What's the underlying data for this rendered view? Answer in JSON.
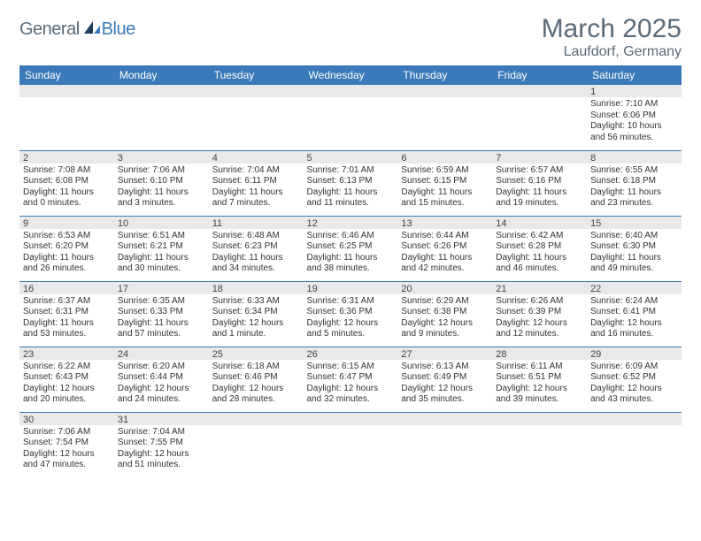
{
  "logo": {
    "part1": "General",
    "part2": "Blue"
  },
  "title": "March 2025",
  "location": "Laufdorf, Germany",
  "weekdays": [
    "Sunday",
    "Monday",
    "Tuesday",
    "Wednesday",
    "Thursday",
    "Friday",
    "Saturday"
  ],
  "colors": {
    "header_bg": "#3a7ab8",
    "header_text": "#ffffff",
    "day_head_bg": "#e9e9e9",
    "border": "#3a7ab8",
    "logo_gray": "#5a6a78",
    "logo_blue": "#3a7ab8"
  },
  "weeks": [
    [
      {
        "n": "",
        "sunrise": "",
        "sunset": "",
        "daylight": ""
      },
      {
        "n": "",
        "sunrise": "",
        "sunset": "",
        "daylight": ""
      },
      {
        "n": "",
        "sunrise": "",
        "sunset": "",
        "daylight": ""
      },
      {
        "n": "",
        "sunrise": "",
        "sunset": "",
        "daylight": ""
      },
      {
        "n": "",
        "sunrise": "",
        "sunset": "",
        "daylight": ""
      },
      {
        "n": "",
        "sunrise": "",
        "sunset": "",
        "daylight": ""
      },
      {
        "n": "1",
        "sunrise": "Sunrise: 7:10 AM",
        "sunset": "Sunset: 6:06 PM",
        "daylight": "Daylight: 10 hours and 56 minutes."
      }
    ],
    [
      {
        "n": "2",
        "sunrise": "Sunrise: 7:08 AM",
        "sunset": "Sunset: 6:08 PM",
        "daylight": "Daylight: 11 hours and 0 minutes."
      },
      {
        "n": "3",
        "sunrise": "Sunrise: 7:06 AM",
        "sunset": "Sunset: 6:10 PM",
        "daylight": "Daylight: 11 hours and 3 minutes."
      },
      {
        "n": "4",
        "sunrise": "Sunrise: 7:04 AM",
        "sunset": "Sunset: 6:11 PM",
        "daylight": "Daylight: 11 hours and 7 minutes."
      },
      {
        "n": "5",
        "sunrise": "Sunrise: 7:01 AM",
        "sunset": "Sunset: 6:13 PM",
        "daylight": "Daylight: 11 hours and 11 minutes."
      },
      {
        "n": "6",
        "sunrise": "Sunrise: 6:59 AM",
        "sunset": "Sunset: 6:15 PM",
        "daylight": "Daylight: 11 hours and 15 minutes."
      },
      {
        "n": "7",
        "sunrise": "Sunrise: 6:57 AM",
        "sunset": "Sunset: 6:16 PM",
        "daylight": "Daylight: 11 hours and 19 minutes."
      },
      {
        "n": "8",
        "sunrise": "Sunrise: 6:55 AM",
        "sunset": "Sunset: 6:18 PM",
        "daylight": "Daylight: 11 hours and 23 minutes."
      }
    ],
    [
      {
        "n": "9",
        "sunrise": "Sunrise: 6:53 AM",
        "sunset": "Sunset: 6:20 PM",
        "daylight": "Daylight: 11 hours and 26 minutes."
      },
      {
        "n": "10",
        "sunrise": "Sunrise: 6:51 AM",
        "sunset": "Sunset: 6:21 PM",
        "daylight": "Daylight: 11 hours and 30 minutes."
      },
      {
        "n": "11",
        "sunrise": "Sunrise: 6:48 AM",
        "sunset": "Sunset: 6:23 PM",
        "daylight": "Daylight: 11 hours and 34 minutes."
      },
      {
        "n": "12",
        "sunrise": "Sunrise: 6:46 AM",
        "sunset": "Sunset: 6:25 PM",
        "daylight": "Daylight: 11 hours and 38 minutes."
      },
      {
        "n": "13",
        "sunrise": "Sunrise: 6:44 AM",
        "sunset": "Sunset: 6:26 PM",
        "daylight": "Daylight: 11 hours and 42 minutes."
      },
      {
        "n": "14",
        "sunrise": "Sunrise: 6:42 AM",
        "sunset": "Sunset: 6:28 PM",
        "daylight": "Daylight: 11 hours and 46 minutes."
      },
      {
        "n": "15",
        "sunrise": "Sunrise: 6:40 AM",
        "sunset": "Sunset: 6:30 PM",
        "daylight": "Daylight: 11 hours and 49 minutes."
      }
    ],
    [
      {
        "n": "16",
        "sunrise": "Sunrise: 6:37 AM",
        "sunset": "Sunset: 6:31 PM",
        "daylight": "Daylight: 11 hours and 53 minutes."
      },
      {
        "n": "17",
        "sunrise": "Sunrise: 6:35 AM",
        "sunset": "Sunset: 6:33 PM",
        "daylight": "Daylight: 11 hours and 57 minutes."
      },
      {
        "n": "18",
        "sunrise": "Sunrise: 6:33 AM",
        "sunset": "Sunset: 6:34 PM",
        "daylight": "Daylight: 12 hours and 1 minute."
      },
      {
        "n": "19",
        "sunrise": "Sunrise: 6:31 AM",
        "sunset": "Sunset: 6:36 PM",
        "daylight": "Daylight: 12 hours and 5 minutes."
      },
      {
        "n": "20",
        "sunrise": "Sunrise: 6:29 AM",
        "sunset": "Sunset: 6:38 PM",
        "daylight": "Daylight: 12 hours and 9 minutes."
      },
      {
        "n": "21",
        "sunrise": "Sunrise: 6:26 AM",
        "sunset": "Sunset: 6:39 PM",
        "daylight": "Daylight: 12 hours and 12 minutes."
      },
      {
        "n": "22",
        "sunrise": "Sunrise: 6:24 AM",
        "sunset": "Sunset: 6:41 PM",
        "daylight": "Daylight: 12 hours and 16 minutes."
      }
    ],
    [
      {
        "n": "23",
        "sunrise": "Sunrise: 6:22 AM",
        "sunset": "Sunset: 6:43 PM",
        "daylight": "Daylight: 12 hours and 20 minutes."
      },
      {
        "n": "24",
        "sunrise": "Sunrise: 6:20 AM",
        "sunset": "Sunset: 6:44 PM",
        "daylight": "Daylight: 12 hours and 24 minutes."
      },
      {
        "n": "25",
        "sunrise": "Sunrise: 6:18 AM",
        "sunset": "Sunset: 6:46 PM",
        "daylight": "Daylight: 12 hours and 28 minutes."
      },
      {
        "n": "26",
        "sunrise": "Sunrise: 6:15 AM",
        "sunset": "Sunset: 6:47 PM",
        "daylight": "Daylight: 12 hours and 32 minutes."
      },
      {
        "n": "27",
        "sunrise": "Sunrise: 6:13 AM",
        "sunset": "Sunset: 6:49 PM",
        "daylight": "Daylight: 12 hours and 35 minutes."
      },
      {
        "n": "28",
        "sunrise": "Sunrise: 6:11 AM",
        "sunset": "Sunset: 6:51 PM",
        "daylight": "Daylight: 12 hours and 39 minutes."
      },
      {
        "n": "29",
        "sunrise": "Sunrise: 6:09 AM",
        "sunset": "Sunset: 6:52 PM",
        "daylight": "Daylight: 12 hours and 43 minutes."
      }
    ],
    [
      {
        "n": "30",
        "sunrise": "Sunrise: 7:06 AM",
        "sunset": "Sunset: 7:54 PM",
        "daylight": "Daylight: 12 hours and 47 minutes."
      },
      {
        "n": "31",
        "sunrise": "Sunrise: 7:04 AM",
        "sunset": "Sunset: 7:55 PM",
        "daylight": "Daylight: 12 hours and 51 minutes."
      },
      {
        "n": "",
        "sunrise": "",
        "sunset": "",
        "daylight": ""
      },
      {
        "n": "",
        "sunrise": "",
        "sunset": "",
        "daylight": ""
      },
      {
        "n": "",
        "sunrise": "",
        "sunset": "",
        "daylight": ""
      },
      {
        "n": "",
        "sunrise": "",
        "sunset": "",
        "daylight": ""
      },
      {
        "n": "",
        "sunrise": "",
        "sunset": "",
        "daylight": ""
      }
    ]
  ]
}
